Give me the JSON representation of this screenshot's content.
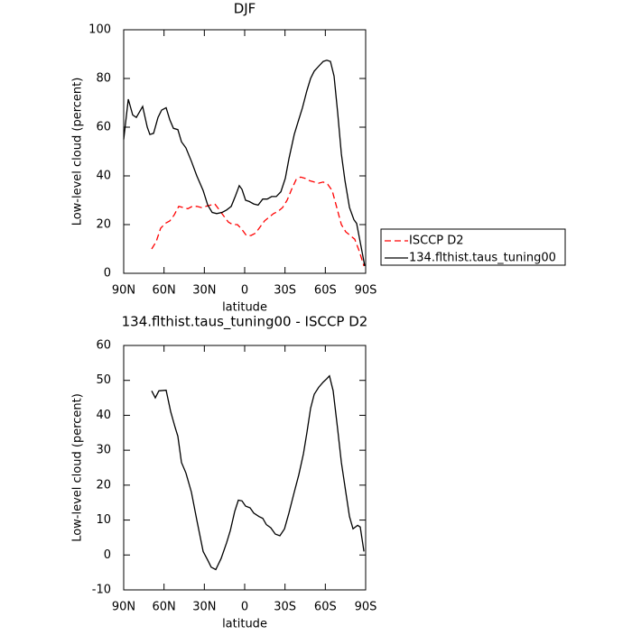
{
  "chart_data": [
    {
      "type": "line",
      "title": "DJF",
      "xlabel": "latitude",
      "ylabel": "Low-level cloud (percent)",
      "xlim": [
        90,
        -90
      ],
      "xticks": [
        {
          "value": 90,
          "label": "90N"
        },
        {
          "value": 60,
          "label": "60N"
        },
        {
          "value": 30,
          "label": "30N"
        },
        0,
        {
          "value": -30,
          "label": "30S"
        },
        {
          "value": -60,
          "label": "60S"
        },
        {
          "value": -90,
          "label": "90S"
        }
      ],
      "ylim": [
        0,
        100
      ],
      "yticks": [
        0,
        20,
        40,
        60,
        80,
        100
      ],
      "legend": "right",
      "series": [
        {
          "name": "ISCCP D2",
          "color": "#ff0000",
          "linestyle": "dashed",
          "x": [
            69.2,
            65.8,
            62.5,
            59.1,
            55.7,
            52.4,
            49,
            45.7,
            42.3,
            39,
            35.6,
            32.2,
            28.9,
            22.2,
            18.8,
            15.5,
            12.1,
            8.7,
            5.4,
            2,
            -1.3,
            -4.7,
            -8.1,
            -11.4,
            -14.8,
            -18.1,
            -21.5,
            -24.9,
            -28.2,
            -31.6,
            -34.9,
            -38.3,
            -41.6,
            -45,
            -48.4,
            -51.7,
            -55,
            -58.4,
            -61.8,
            -65.1,
            -68.5,
            -71.9,
            -75.2,
            -78.6,
            -81.9,
            -85.3,
            -88.7
          ],
          "values": [
            10,
            13,
            18.5,
            20.5,
            21.5,
            24,
            27.5,
            27,
            26.5,
            27.5,
            27.5,
            27,
            27.5,
            28.5,
            26,
            23.5,
            21,
            20,
            20,
            18,
            15.5,
            15.5,
            16.5,
            19,
            21.5,
            23,
            24.5,
            25.5,
            27,
            30,
            34.5,
            38.5,
            39.5,
            39,
            38,
            37.5,
            37,
            37.5,
            36.5,
            34,
            27,
            20,
            17,
            15.5,
            14,
            9,
            3
          ]
        },
        {
          "name": "134.flthist.taus_tuning00",
          "color": "#000000",
          "linestyle": "solid",
          "x": [
            90,
            86.6,
            83.3,
            80.6,
            75.9,
            72.5,
            70.5,
            67.8,
            64.5,
            61.8,
            58.4,
            55.7,
            53,
            49.7,
            47,
            43.7,
            39.6,
            35.6,
            30.9,
            27.5,
            24.2,
            20.8,
            16.8,
            13.4,
            10,
            6.7,
            4,
            2,
            -0.7,
            -3.4,
            -6.7,
            -10,
            -13.4,
            -16.8,
            -20.1,
            -23.5,
            -26.9,
            -30.2,
            -32.9,
            -36.9,
            -39.6,
            -43,
            -46.3,
            -49,
            -51.7,
            -55,
            -58.4,
            -61.1,
            -63.8,
            -66.5,
            -69.2,
            -71.9,
            -74.6,
            -78,
            -81.3,
            -83.3,
            -86.6,
            -89.3
          ],
          "values": [
            55,
            71.5,
            65,
            64,
            68.5,
            60,
            57,
            57.5,
            64,
            67,
            68,
            63,
            59.5,
            59,
            54,
            51.5,
            46,
            40,
            34,
            28,
            25,
            24.5,
            25,
            26,
            27.5,
            32,
            36,
            34.5,
            30,
            29.5,
            28.5,
            28,
            30.5,
            30.5,
            31.5,
            31.5,
            33.5,
            39,
            47,
            57,
            62,
            68,
            75,
            80,
            83,
            85,
            87,
            87.5,
            87,
            81,
            66,
            49,
            38,
            27,
            22,
            20.5,
            11,
            3
          ]
        }
      ]
    },
    {
      "type": "line",
      "title": "134.flthist.taus_tuning00 - ISCCP D2",
      "xlabel": "latitude",
      "ylabel": "Low-level cloud (percent)",
      "xlim": [
        90,
        -90
      ],
      "xticks": [
        {
          "value": 90,
          "label": "90N"
        },
        {
          "value": 60,
          "label": "60N"
        },
        {
          "value": 30,
          "label": "30N"
        },
        0,
        {
          "value": -30,
          "label": "30S"
        },
        {
          "value": -60,
          "label": "60S"
        },
        {
          "value": -90,
          "label": "90S"
        }
      ],
      "ylim": [
        -10,
        60
      ],
      "yticks": [
        -10,
        0,
        10,
        20,
        30,
        40,
        50,
        60
      ],
      "series": [
        {
          "color": "#000000",
          "linestyle": "solid",
          "x": [
            69.2,
            66.5,
            63.8,
            58.4,
            55,
            51.7,
            49.7,
            47,
            43.7,
            39.6,
            35.6,
            30.9,
            27.5,
            24.9,
            21.5,
            17.5,
            13.4,
            10.7,
            7.4,
            4.7,
            2,
            -0.7,
            -4,
            -6.7,
            -10.7,
            -13.4,
            -16.1,
            -19.4,
            -22.8,
            -26.2,
            -29.6,
            -32.9,
            -36.9,
            -40.3,
            -43.7,
            -46.3,
            -49,
            -51.7,
            -55,
            -58.4,
            -61.1,
            -63.1,
            -65.8,
            -69.2,
            -71.9,
            -75.2,
            -78,
            -80.6,
            -84,
            -86,
            -88.7
          ],
          "values": [
            47,
            45,
            47,
            47.2,
            41,
            36.5,
            34,
            26.5,
            23.5,
            18,
            10,
            1,
            -1.5,
            -3.5,
            -4.2,
            -1,
            3.5,
            7,
            12.5,
            15.7,
            15.5,
            14,
            13.5,
            12,
            11,
            10.5,
            8.7,
            7.8,
            6,
            5.5,
            7.5,
            12,
            18,
            23,
            29,
            35,
            42,
            46,
            48,
            49.5,
            50.5,
            51.3,
            47,
            36,
            26.5,
            18,
            11,
            7.5,
            8.5,
            8,
            1
          ]
        }
      ]
    }
  ]
}
